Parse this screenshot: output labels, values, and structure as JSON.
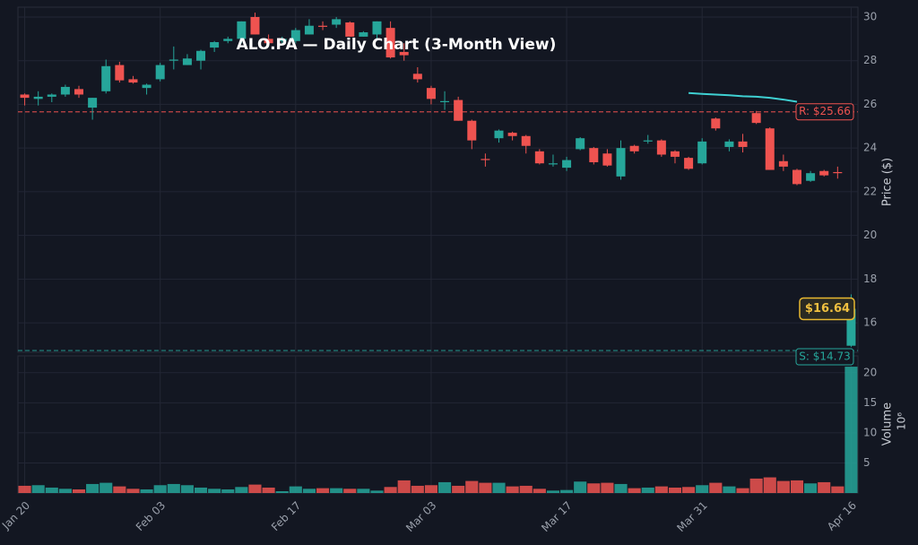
{
  "chart_data": {
    "type": "candlestick",
    "title": "ALO.PA — Daily Chart (3-Month View)",
    "y_label": "Price ($)",
    "volume_label": "Volume",
    "volume_offset": "10⁶",
    "categories": [
      "Jan 20",
      null,
      null,
      null,
      null,
      null,
      null,
      null,
      null,
      null,
      "Feb 03",
      null,
      null,
      null,
      null,
      null,
      null,
      null,
      null,
      null,
      "Feb 17",
      null,
      null,
      null,
      null,
      null,
      null,
      null,
      null,
      null,
      "Mar 03",
      null,
      null,
      null,
      null,
      null,
      null,
      null,
      null,
      null,
      "Mar 17",
      null,
      null,
      null,
      null,
      null,
      null,
      null,
      null,
      null,
      "Mar 31",
      null,
      null,
      null,
      null,
      null,
      null,
      null,
      null,
      null,
      null,
      "Apr 16"
    ],
    "open": [
      26.45,
      26.25,
      26.35,
      26.45,
      26.7,
      25.85,
      26.6,
      27.8,
      27.15,
      26.75,
      27.15,
      28.0,
      27.8,
      28.0,
      28.6,
      28.9,
      29.0,
      30.0,
      29.0,
      28.9,
      28.9,
      29.2,
      29.6,
      29.65,
      29.75,
      29.1,
      29.2,
      29.5,
      28.4,
      27.4,
      26.75,
      26.1,
      26.2,
      25.25,
      23.5,
      24.45,
      24.7,
      24.55,
      23.85,
      23.25,
      23.1,
      23.95,
      24.0,
      23.75,
      22.7,
      24.1,
      24.3,
      24.35,
      23.85,
      23.55,
      23.3,
      25.35,
      24.05,
      24.3,
      25.6,
      24.9,
      23.4,
      23.0,
      22.5,
      22.95,
      22.9,
      14.95
    ],
    "high": [
      26.5,
      26.6,
      26.5,
      26.9,
      26.85,
      26.3,
      28.05,
      27.95,
      27.3,
      26.95,
      27.9,
      28.65,
      28.3,
      28.5,
      28.9,
      29.1,
      29.8,
      30.2,
      29.2,
      29.1,
      29.5,
      29.9,
      29.8,
      30.0,
      29.8,
      29.35,
      29.8,
      29.8,
      28.8,
      27.7,
      26.85,
      26.6,
      26.35,
      25.3,
      23.75,
      24.85,
      24.75,
      24.6,
      23.95,
      23.7,
      23.6,
      24.5,
      24.05,
      23.95,
      24.35,
      24.15,
      24.6,
      24.4,
      23.9,
      23.6,
      24.45,
      25.4,
      24.4,
      24.65,
      25.7,
      24.95,
      23.7,
      23.05,
      22.95,
      23.0,
      23.15,
      17.3
    ],
    "low": [
      25.95,
      25.95,
      26.1,
      26.35,
      26.3,
      25.3,
      26.5,
      27.0,
      26.95,
      26.45,
      27.05,
      27.6,
      27.8,
      27.6,
      28.4,
      28.8,
      28.8,
      29.2,
      28.7,
      28.8,
      28.8,
      29.2,
      29.4,
      29.5,
      29.1,
      29.1,
      29.0,
      28.1,
      28.0,
      27.0,
      26.0,
      25.75,
      25.25,
      23.95,
      23.15,
      24.25,
      24.35,
      23.75,
      23.25,
      23.15,
      22.95,
      23.9,
      23.25,
      23.15,
      22.55,
      23.75,
      24.2,
      23.6,
      23.3,
      23.0,
      23.25,
      24.8,
      23.85,
      23.8,
      25.1,
      23.0,
      22.95,
      22.3,
      22.45,
      22.7,
      22.6,
      14.9
    ],
    "close": [
      26.3,
      26.35,
      26.45,
      26.8,
      26.45,
      26.3,
      27.75,
      27.1,
      27.0,
      26.9,
      27.8,
      28.05,
      28.1,
      28.45,
      28.85,
      29.0,
      29.8,
      29.2,
      28.8,
      29.0,
      29.4,
      29.6,
      29.55,
      29.9,
      29.1,
      29.3,
      29.8,
      28.15,
      28.25,
      27.15,
      26.25,
      26.15,
      25.25,
      24.35,
      23.45,
      24.8,
      24.55,
      24.1,
      23.3,
      23.3,
      23.45,
      24.45,
      23.35,
      23.2,
      24.0,
      23.85,
      24.35,
      23.7,
      23.6,
      23.05,
      24.3,
      24.9,
      24.3,
      24.05,
      25.15,
      23.0,
      23.15,
      22.35,
      22.85,
      22.75,
      22.85,
      16.64
    ],
    "volume": [
      1.2,
      1.3,
      0.9,
      0.7,
      0.6,
      1.5,
      1.7,
      1.1,
      0.7,
      0.6,
      1.3,
      1.5,
      1.3,
      0.9,
      0.7,
      0.6,
      1.0,
      1.4,
      0.9,
      0.3,
      1.1,
      0.7,
      0.8,
      0.8,
      0.7,
      0.7,
      0.4,
      1.0,
      2.1,
      1.2,
      1.3,
      1.8,
      1.2,
      2.0,
      1.7,
      1.7,
      1.1,
      1.2,
      0.7,
      0.4,
      0.5,
      1.9,
      1.6,
      1.7,
      1.5,
      0.8,
      0.9,
      1.1,
      0.9,
      1.0,
      1.3,
      1.7,
      1.1,
      0.8,
      2.4,
      2.6,
      2.0,
      2.1,
      1.6,
      1.8,
      1.1,
      21.0
    ],
    "ma_line": {
      "color": "#3fd1d3",
      "values": [
        null,
        null,
        null,
        null,
        null,
        null,
        null,
        null,
        null,
        null,
        null,
        null,
        null,
        null,
        null,
        null,
        null,
        null,
        null,
        null,
        null,
        null,
        null,
        null,
        null,
        null,
        null,
        null,
        null,
        null,
        null,
        null,
        null,
        null,
        null,
        null,
        null,
        null,
        null,
        null,
        null,
        null,
        null,
        null,
        null,
        null,
        null,
        null,
        null,
        26.52,
        26.48,
        26.45,
        26.42,
        26.37,
        26.35,
        26.3,
        26.22,
        26.12,
        null,
        null,
        null,
        null
      ]
    },
    "up_color": "#26a69a",
    "down_color": "#ef5350",
    "resistance": {
      "value": 25.66,
      "label": "R: $25.66"
    },
    "support": {
      "value": 14.73,
      "label": "S: $14.73"
    },
    "last_price": {
      "value": 16.64,
      "label": "$16.64"
    },
    "ylim": [
      14.65,
      30.45
    ],
    "yticks": [
      16,
      18,
      20,
      22,
      24,
      26,
      28,
      30
    ],
    "volume_ylim": [
      0,
      22.8
    ],
    "volume_yticks": [
      5,
      10,
      15,
      20
    ],
    "grid": true
  }
}
